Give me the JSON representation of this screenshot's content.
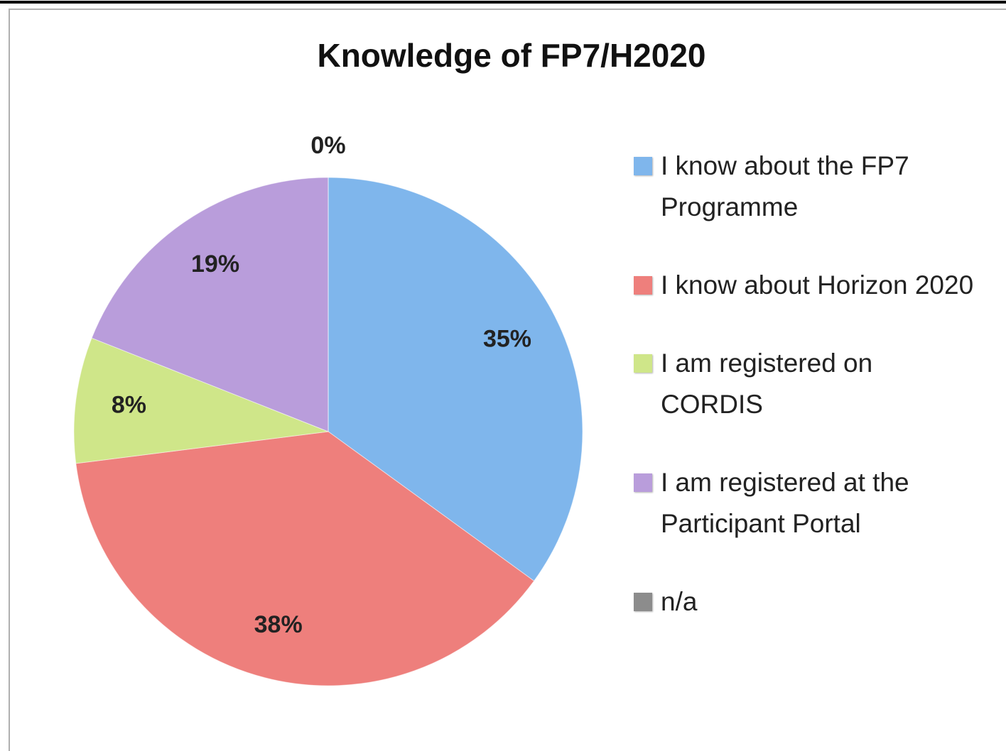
{
  "chart_data": {
    "type": "pie",
    "title": "Knowledge of FP7/H2020",
    "categories": [
      "I know about the FP7 Programme",
      "I know about Horizon 2020",
      "I am registered on CORDIS",
      "I am registered at the Participant Portal",
      "n/a"
    ],
    "values": [
      35,
      38,
      8,
      19,
      0
    ],
    "value_labels": [
      "35%",
      "38%",
      "8%",
      "19%",
      "0%"
    ],
    "colors": [
      "#7fb6ec",
      "#ee7f7c",
      "#cfe689",
      "#b99ddb",
      "#8c8c8c"
    ],
    "legend": "right"
  }
}
